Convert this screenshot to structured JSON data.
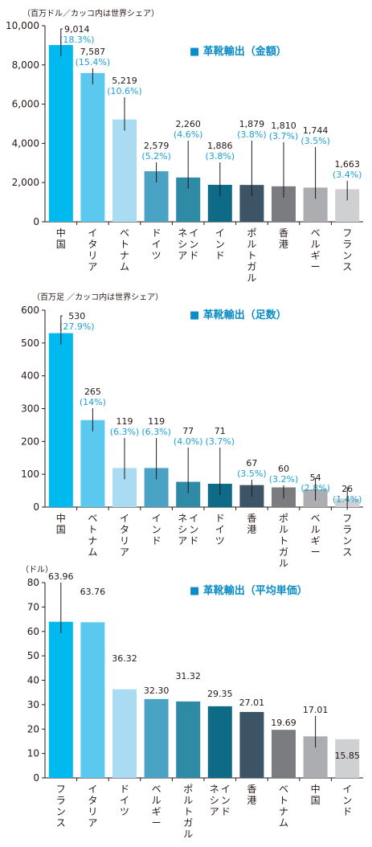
{
  "chart_data": [
    {
      "type": "bar",
      "title": "■ 革靴輸出（金額）",
      "unit_label": "（百万ドル／カッコ内は世界シェア）",
      "categories": [
        "中国",
        "イタリア",
        "ベトナム",
        "ドイツ",
        "インドネシア",
        "インド",
        "ポルトガル",
        "香港",
        "ベルギー",
        "フランス"
      ],
      "values": [
        9014,
        7587,
        5219,
        2579,
        2260,
        1886,
        1879,
        1810,
        1744,
        1663
      ],
      "value_labels": [
        "9,014",
        "7,587",
        "5,219",
        "2,579",
        "2,260",
        "1,886",
        "1,879",
        "1,810",
        "1,744",
        "1,663"
      ],
      "shares": [
        "(18.3%)",
        "(15.4%)",
        "(10.6%)",
        "(5.2%)",
        "(4.6%)",
        "(3.8%)",
        "(3.8%)",
        "(3.7%)",
        "(3.5%)",
        "(3.4%)"
      ],
      "ylim": [
        0,
        10000
      ],
      "yticks": [
        0,
        2000,
        4000,
        6000,
        8000,
        10000
      ],
      "ytick_labels": [
        "0",
        "2,000",
        "4,000",
        "6,000",
        "8,000",
        "10,000"
      ],
      "grid": false,
      "legend": "top-right"
    },
    {
      "type": "bar",
      "title": "■ 革靴輸出（足数）",
      "unit_label": "（百万足 ／カッコ内は世界シェア）",
      "categories": [
        "中国",
        "ベトナム",
        "イタリア",
        "インド",
        "インドネシア",
        "ドイツ",
        "香港",
        "ポルトガル",
        "ベルギー",
        "フランス"
      ],
      "values": [
        530,
        265,
        119,
        119,
        77,
        71,
        67,
        60,
        54,
        26
      ],
      "value_labels": [
        "530",
        "265",
        "119",
        "119",
        "77",
        "71",
        "67",
        "60",
        "54",
        "26"
      ],
      "shares": [
        "(27.9%)",
        "(14%)",
        "(6.3%)",
        "(6.3%)",
        "(4.0%)",
        "(3.7%)",
        "(3.5%)",
        "(3.2%)",
        "(2.8%)",
        "(1.4%)"
      ],
      "ylim": [
        0,
        600
      ],
      "yticks": [
        0,
        100,
        200,
        300,
        400,
        500,
        600
      ],
      "ytick_labels": [
        "0",
        "100",
        "200",
        "300",
        "400",
        "500",
        "600"
      ],
      "grid": false,
      "legend": "top-right"
    },
    {
      "type": "bar",
      "title": "■ 革靴輸出（平均単価）",
      "unit_label": "（ドル）",
      "categories": [
        "フランス",
        "イタリア",
        "ドイツ",
        "ベルギー",
        "ポルトガル",
        "インドネシア",
        "香港",
        "ベトナム",
        "中国",
        "インド"
      ],
      "values": [
        63.96,
        63.76,
        36.32,
        32.3,
        31.32,
        29.35,
        27.01,
        19.69,
        17.01,
        15.85
      ],
      "value_labels": [
        "63.96",
        "63.76",
        "36.32",
        "32.30",
        "31.32",
        "29.35",
        "27.01",
        "19.69",
        "17.01",
        "15.85"
      ],
      "shares": [],
      "ylim": [
        0,
        80
      ],
      "yticks": [
        0,
        10,
        20,
        30,
        40,
        50,
        60,
        70,
        80
      ],
      "ytick_labels": [
        "0",
        "10",
        "20",
        "30",
        "40",
        "50",
        "60",
        "70",
        "80"
      ],
      "grid": false,
      "legend": "top-right"
    }
  ],
  "colors": {
    "palette": [
      "#00b9ef",
      "#5bc8ef",
      "#a9dcf3",
      "#4aa3c4",
      "#2f8aa6",
      "#0d6b88",
      "#3c5466",
      "#7b7c7f",
      "#acadb0",
      "#cfd0d2"
    ],
    "title_accent": "#0a8cc8",
    "share_text": "#1a9fd9"
  }
}
